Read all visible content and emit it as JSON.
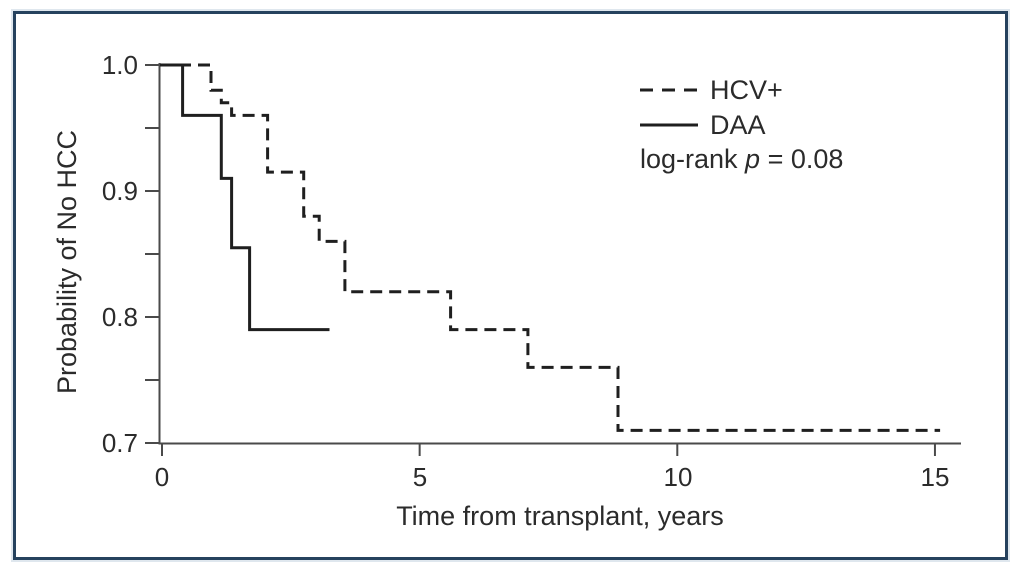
{
  "figure": {
    "description": "Kaplan-Meier curve figure with dark blue outer border"
  },
  "chart_data": {
    "type": "line",
    "subtype": "kaplan-meier-step",
    "title": "",
    "xlabel": "Time from transplant, years",
    "ylabel": "Probability of No HCC",
    "xlim": [
      0,
      15.5
    ],
    "ylim": [
      0.7,
      1.0
    ],
    "grid": false,
    "legend_position": "top-right",
    "x_ticks": [
      0,
      5,
      10,
      15
    ],
    "x_tick_labels": [
      "0",
      "5",
      "10",
      "15"
    ],
    "y_ticks_major": [
      1.0,
      0.9,
      0.8,
      0.7
    ],
    "y_tick_labels": [
      "1.0",
      "0.9",
      "0.8",
      "0.7"
    ],
    "y_ticks_minor": [
      0.95,
      0.85,
      0.75
    ],
    "series": [
      {
        "name": "HCV+",
        "line_style": "dashed",
        "color": "#1f1f1f",
        "steps": [
          [
            0,
            1.0
          ],
          [
            0.95,
            0.98
          ],
          [
            1.15,
            0.97
          ],
          [
            1.35,
            0.96
          ],
          [
            2.05,
            0.915
          ],
          [
            2.75,
            0.88
          ],
          [
            3.05,
            0.86
          ],
          [
            3.55,
            0.82
          ],
          [
            5.6,
            0.79
          ],
          [
            7.1,
            0.76
          ],
          [
            8.85,
            0.71
          ]
        ],
        "end_time": 15.1
      },
      {
        "name": "DAA",
        "line_style": "solid",
        "color": "#1f1f1f",
        "steps": [
          [
            0,
            1.0
          ],
          [
            0.4,
            0.96
          ],
          [
            1.15,
            0.91
          ],
          [
            1.35,
            0.855
          ],
          [
            1.7,
            0.79
          ]
        ],
        "end_time": 3.25
      }
    ],
    "annotation": "log-rank p = 0.08"
  },
  "legend": {
    "entries": [
      {
        "label": "HCV+",
        "style": "dashed"
      },
      {
        "label": "DAA",
        "style": "solid"
      }
    ],
    "stat": {
      "prefix": "log-rank ",
      "p_symbol": "p",
      "suffix": " = 0.08"
    }
  },
  "colors": {
    "border": "#26425e",
    "curve": "#1f1f1f",
    "axis": "#4a4a4a",
    "text": "#2b2b2b",
    "background": "#ffffff"
  }
}
